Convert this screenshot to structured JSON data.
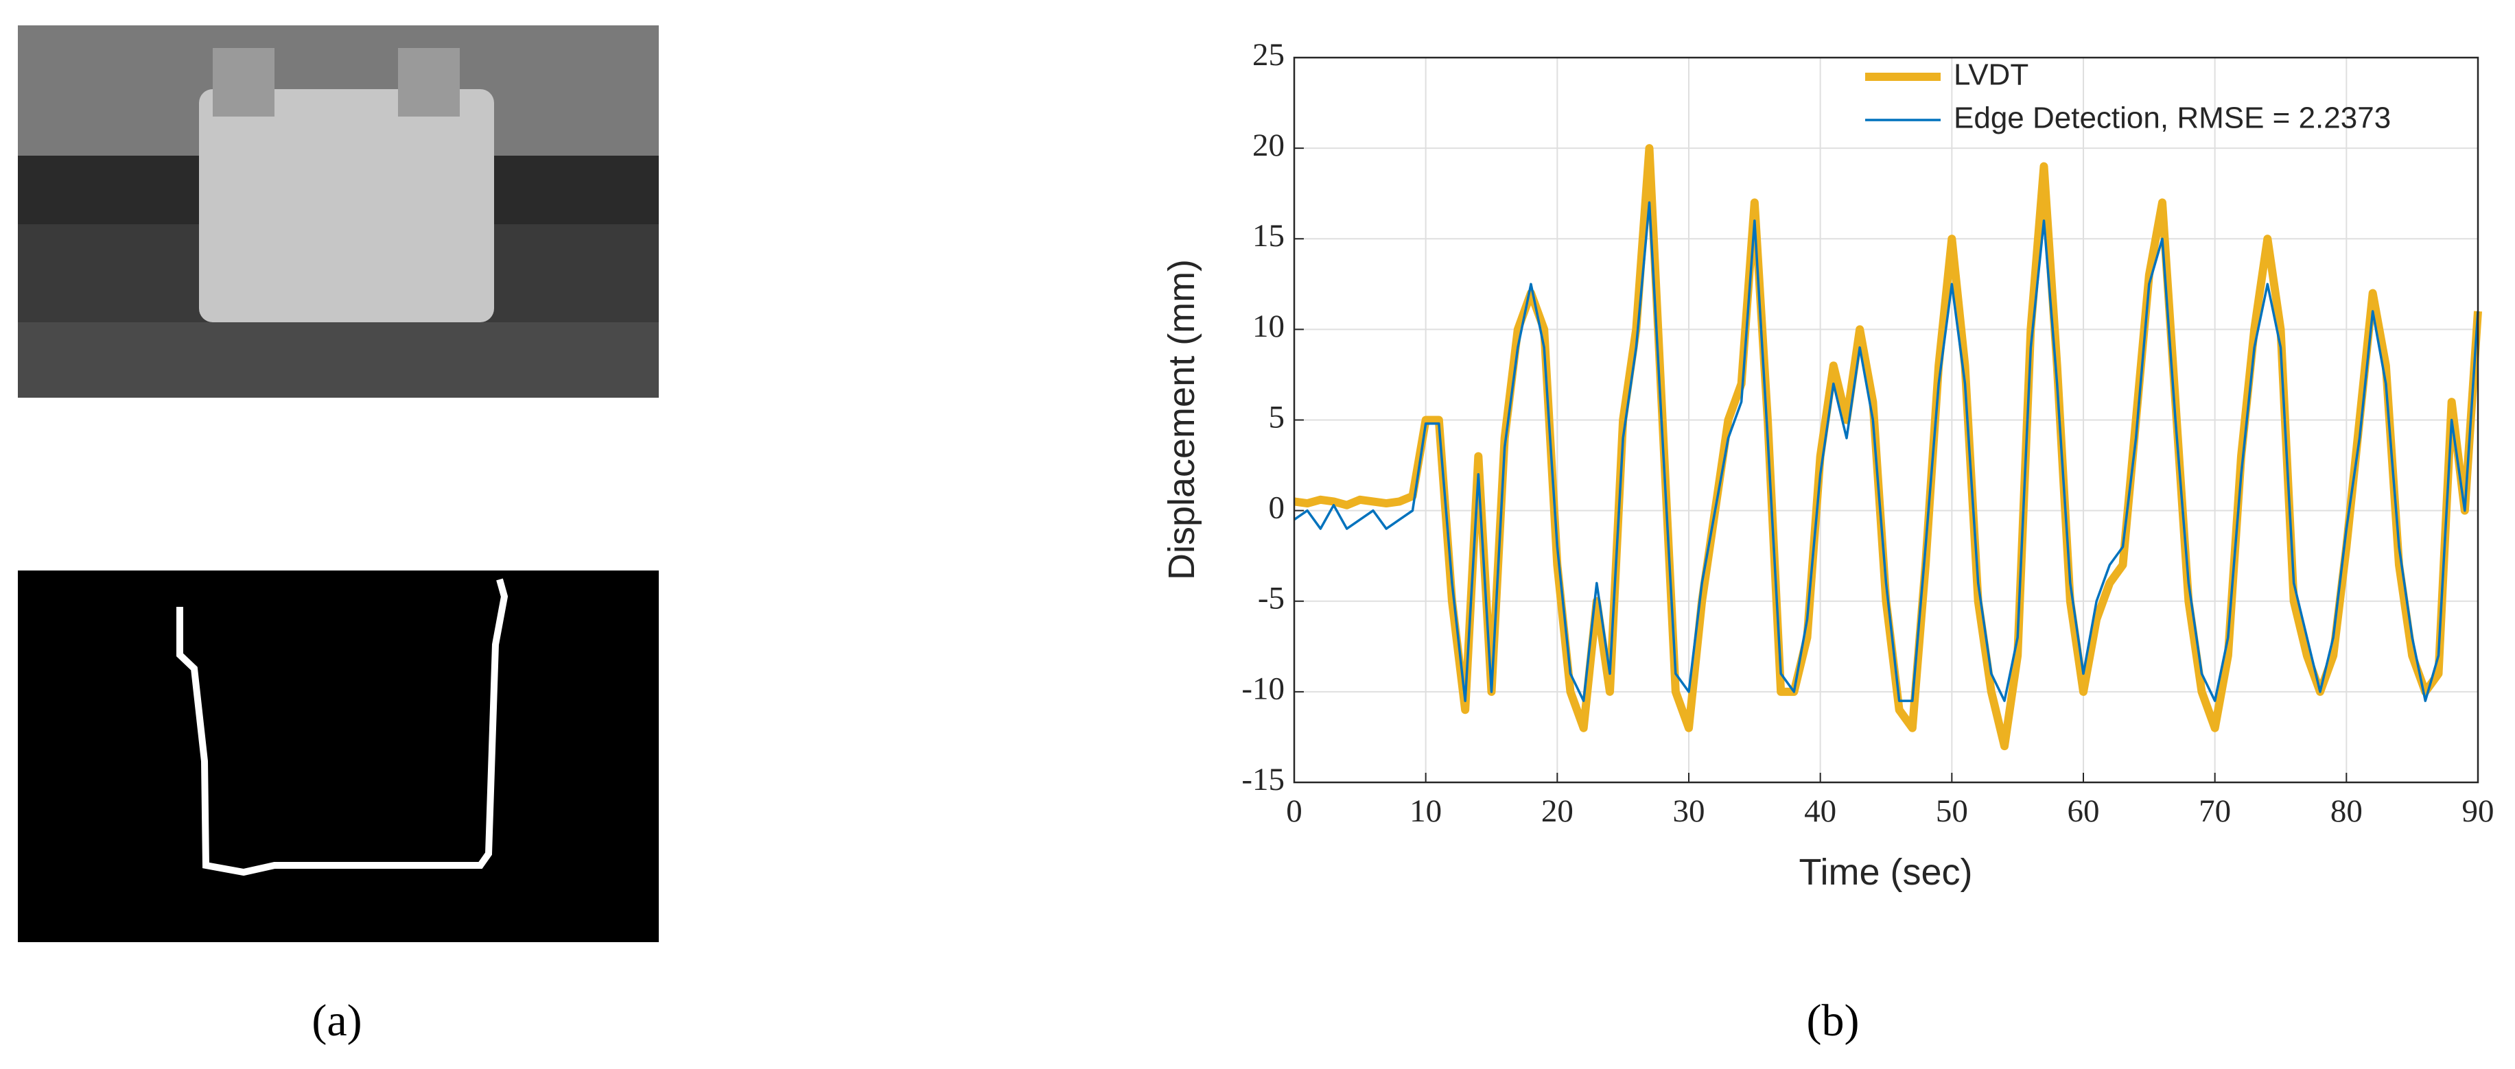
{
  "panels": {
    "a": "(a)",
    "b": "(b)"
  },
  "chart_data": {
    "type": "line",
    "xlabel": "Time (sec)",
    "ylabel": "Displacement (mm)",
    "x": [
      0,
      1,
      2,
      3,
      4,
      5,
      6,
      7,
      8,
      9,
      10,
      11,
      12,
      13,
      14,
      15,
      16,
      17,
      18,
      19,
      20,
      21,
      22,
      23,
      24,
      25,
      26,
      27,
      28,
      29,
      30,
      31,
      32,
      33,
      34,
      35,
      36,
      37,
      38,
      39,
      40,
      41,
      42,
      43,
      44,
      45,
      46,
      47,
      48,
      49,
      50,
      51,
      52,
      53,
      54,
      55,
      56,
      57,
      58,
      59,
      60,
      61,
      62,
      63,
      64,
      65,
      66,
      67,
      68,
      69,
      70,
      71,
      72,
      73,
      74,
      75,
      76,
      77,
      78,
      79,
      80,
      81,
      82,
      83,
      84,
      85,
      86,
      87,
      88,
      89,
      90
    ],
    "series": [
      {
        "name": "LVDT",
        "color": "#EDB120",
        "values": [
          0.5,
          0.4,
          0.6,
          0.5,
          0.3,
          0.6,
          0.5,
          0.4,
          0.5,
          0.8,
          5,
          5,
          -5,
          -11,
          3,
          -10,
          4,
          10,
          12,
          10,
          -3,
          -10,
          -12,
          -5,
          -10,
          5,
          10,
          20,
          5,
          -10,
          -12,
          -5,
          0,
          5,
          7,
          17,
          5,
          -10,
          -10,
          -7,
          3,
          8,
          5,
          10,
          6,
          -5,
          -11,
          -12,
          -3,
          8,
          15,
          8,
          -5,
          -10,
          -13,
          -8,
          10,
          19,
          8,
          -5,
          -10,
          -6,
          -4,
          -3,
          5,
          13,
          17,
          6,
          -5,
          -10,
          -12,
          -8,
          3,
          10,
          15,
          10,
          -5,
          -8,
          -10,
          -8,
          -2,
          5,
          12,
          8,
          -3,
          -8,
          -10,
          -9,
          6,
          0,
          11
        ]
      },
      {
        "name": "Edge Detection, RMSE = 2.2373",
        "color": "#0072BD",
        "values": [
          -0.5,
          0,
          -1,
          0.3,
          -1,
          -0.5,
          0,
          -1,
          -0.5,
          0,
          4.8,
          4.8,
          -4,
          -10.5,
          2,
          -10,
          3.5,
          9,
          12.5,
          9,
          -2,
          -9,
          -10.5,
          -4,
          -9,
          4,
          9,
          17,
          4,
          -9,
          -10,
          -4,
          0,
          4,
          6,
          16,
          4,
          -9,
          -10,
          -6,
          2,
          7,
          4,
          9,
          5,
          -4,
          -10.5,
          -10.5,
          -2,
          7,
          12.5,
          7,
          -4,
          -9,
          -10.5,
          -7,
          9,
          16,
          7,
          -4,
          -9,
          -5,
          -3,
          -2,
          4,
          12.5,
          15,
          5,
          -4,
          -9,
          -10.5,
          -7,
          2,
          9,
          12.5,
          9,
          -4,
          -7,
          -10,
          -7,
          -1,
          4,
          11,
          7,
          -2,
          -7,
          -10.5,
          -8,
          5,
          0,
          11
        ]
      }
    ],
    "xlim": [
      0,
      90
    ],
    "xticks": [
      0,
      10,
      20,
      30,
      40,
      50,
      60,
      70,
      80,
      90
    ],
    "ylim": [
      -15,
      25
    ],
    "yticks": [
      -15,
      -10,
      -5,
      0,
      5,
      10,
      15,
      20,
      25
    ],
    "grid": true,
    "legend": "top-right"
  }
}
